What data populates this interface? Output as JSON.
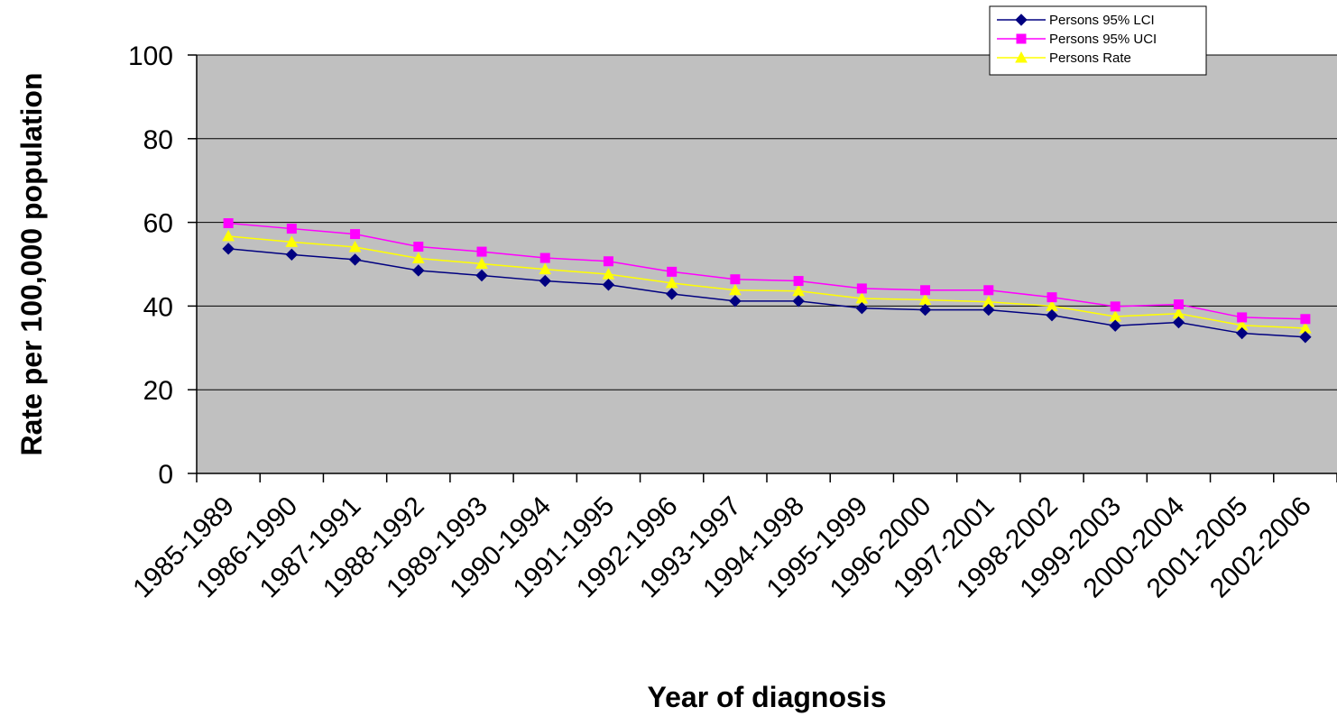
{
  "chart_data": {
    "type": "line",
    "title": "",
    "xlabel": "Year of diagnosis",
    "ylabel": "Rate per 100,000 population",
    "ylim": [
      0,
      100
    ],
    "yticks": [
      0,
      20,
      40,
      60,
      80,
      100
    ],
    "grid": true,
    "legend_position": "top-right",
    "plot_background": "#C0C0C0",
    "categories": [
      "1985-1989",
      "1986-1990",
      "1987-1991",
      "1988-1992",
      "1989-1993",
      "1990-1994",
      "1991-1995",
      "1992-1996",
      "1993-1997",
      "1994-1998",
      "1995-1999",
      "1996-2000",
      "1997-2001",
      "1998-2002",
      "1999-2003",
      "2000-2004",
      "2001-2005",
      "2002-2006"
    ],
    "series": [
      {
        "name": "Persons 95% LCI",
        "color": "#000080",
        "marker": "diamond",
        "values": [
          53.7,
          52.3,
          51.1,
          48.5,
          47.3,
          46.0,
          45.1,
          42.9,
          41.2,
          41.2,
          39.5,
          39.1,
          39.1,
          37.8,
          35.3,
          36.1,
          33.5,
          32.6
        ]
      },
      {
        "name": "Persons 95% UCI",
        "color": "#FF00FF",
        "marker": "square",
        "values": [
          59.8,
          58.5,
          57.2,
          54.2,
          53.0,
          51.5,
          50.7,
          48.2,
          46.4,
          46.0,
          44.2,
          43.8,
          43.8,
          42.1,
          39.9,
          40.4,
          37.3,
          36.9
        ]
      },
      {
        "name": "Persons Rate",
        "color": "#FFFF00",
        "marker": "triangle",
        "values": [
          56.7,
          55.3,
          54.1,
          51.4,
          50.1,
          48.8,
          47.6,
          45.5,
          43.8,
          43.6,
          41.8,
          41.5,
          41.0,
          40.0,
          37.5,
          38.2,
          35.4,
          34.7
        ]
      }
    ]
  }
}
